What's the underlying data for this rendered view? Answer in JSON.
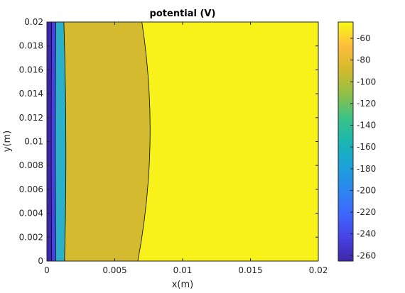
{
  "chart_data": {
    "type": "heatmap",
    "title": "potential (V)",
    "xlabel": "x(m)",
    "ylabel": "y(m)",
    "xlim": [
      0,
      0.02
    ],
    "ylim": [
      0,
      0.02
    ],
    "x_ticks": [
      "0",
      "0.005",
      "0.01",
      "0.015",
      "0.02"
    ],
    "y_ticks": [
      "0",
      "0.002",
      "0.004",
      "0.006",
      "0.008",
      "0.01",
      "0.012",
      "0.014",
      "0.016",
      "0.018",
      "0.02"
    ],
    "colorbar": {
      "range": [
        -265,
        -45
      ],
      "ticks": [
        "-260",
        "-240",
        "-220",
        "-200",
        "-180",
        "-160",
        "-140",
        "-120",
        "-100",
        "-80",
        "-60"
      ],
      "colormap": "parula"
    },
    "contour_regions": [
      {
        "level": -260,
        "color": "#3e26a8",
        "x_end_at_ymin": 0.00035,
        "x_end_at_ymid": 0.00032,
        "x_end_at_ymax": 0.00035
      },
      {
        "level": -230,
        "color": "#4743e6",
        "x_end_at_ymin": 0.00065,
        "x_end_at_ymid": 0.00062,
        "x_end_at_ymax": 0.00065
      },
      {
        "level": -180,
        "color": "#2ab0c8",
        "x_end_at_ymin": 0.0013,
        "x_end_at_ymid": 0.0014,
        "x_end_at_ymax": 0.00125
      },
      {
        "level": -95,
        "color": "#d4ba2e",
        "x_end_at_ymin": 0.0067,
        "x_end_at_ymid": 0.0076,
        "x_end_at_ymax": 0.007
      },
      {
        "level": -50,
        "color": "#f9f11a",
        "x_end_at_ymin": 0.02,
        "x_end_at_ymid": 0.02,
        "x_end_at_ymax": 0.02
      }
    ]
  }
}
